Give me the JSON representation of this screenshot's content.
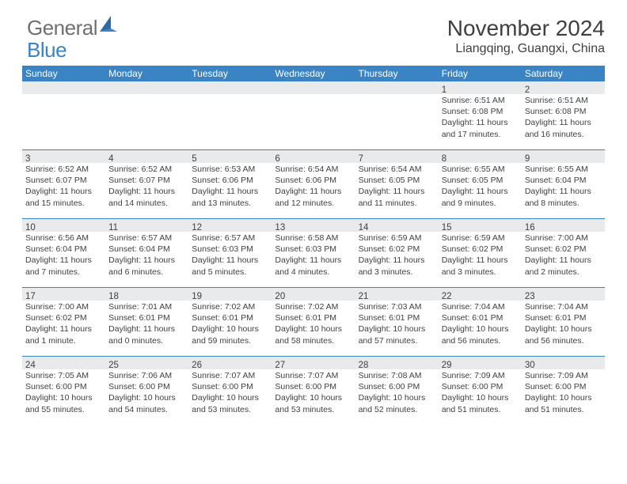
{
  "logo": {
    "text_general": "General",
    "text_blue": "Blue",
    "sail_color": "#2f6aa8"
  },
  "title": {
    "month_year": "November 2024",
    "location": "Liangqing, Guangxi, China"
  },
  "colors": {
    "header_bar": "#3a83c5",
    "day_bar": "#e9eaeb",
    "row_divider": "#3a83c5",
    "text_dark": "#3f3f3f",
    "text_white": "#ffffff",
    "text_gray": "#6f6f6f",
    "text_blue": "#3a83c5",
    "background": "#ffffff"
  },
  "weekdays": [
    "Sunday",
    "Monday",
    "Tuesday",
    "Wednesday",
    "Thursday",
    "Friday",
    "Saturday"
  ],
  "weeks": [
    [
      {
        "num": "",
        "sunrise": "",
        "sunset": "",
        "daylight": ""
      },
      {
        "num": "",
        "sunrise": "",
        "sunset": "",
        "daylight": ""
      },
      {
        "num": "",
        "sunrise": "",
        "sunset": "",
        "daylight": ""
      },
      {
        "num": "",
        "sunrise": "",
        "sunset": "",
        "daylight": ""
      },
      {
        "num": "",
        "sunrise": "",
        "sunset": "",
        "daylight": ""
      },
      {
        "num": "1",
        "sunrise": "Sunrise: 6:51 AM",
        "sunset": "Sunset: 6:08 PM",
        "daylight": "Daylight: 11 hours and 17 minutes."
      },
      {
        "num": "2",
        "sunrise": "Sunrise: 6:51 AM",
        "sunset": "Sunset: 6:08 PM",
        "daylight": "Daylight: 11 hours and 16 minutes."
      }
    ],
    [
      {
        "num": "3",
        "sunrise": "Sunrise: 6:52 AM",
        "sunset": "Sunset: 6:07 PM",
        "daylight": "Daylight: 11 hours and 15 minutes."
      },
      {
        "num": "4",
        "sunrise": "Sunrise: 6:52 AM",
        "sunset": "Sunset: 6:07 PM",
        "daylight": "Daylight: 11 hours and 14 minutes."
      },
      {
        "num": "5",
        "sunrise": "Sunrise: 6:53 AM",
        "sunset": "Sunset: 6:06 PM",
        "daylight": "Daylight: 11 hours and 13 minutes."
      },
      {
        "num": "6",
        "sunrise": "Sunrise: 6:54 AM",
        "sunset": "Sunset: 6:06 PM",
        "daylight": "Daylight: 11 hours and 12 minutes."
      },
      {
        "num": "7",
        "sunrise": "Sunrise: 6:54 AM",
        "sunset": "Sunset: 6:05 PM",
        "daylight": "Daylight: 11 hours and 11 minutes."
      },
      {
        "num": "8",
        "sunrise": "Sunrise: 6:55 AM",
        "sunset": "Sunset: 6:05 PM",
        "daylight": "Daylight: 11 hours and 9 minutes."
      },
      {
        "num": "9",
        "sunrise": "Sunrise: 6:55 AM",
        "sunset": "Sunset: 6:04 PM",
        "daylight": "Daylight: 11 hours and 8 minutes."
      }
    ],
    [
      {
        "num": "10",
        "sunrise": "Sunrise: 6:56 AM",
        "sunset": "Sunset: 6:04 PM",
        "daylight": "Daylight: 11 hours and 7 minutes."
      },
      {
        "num": "11",
        "sunrise": "Sunrise: 6:57 AM",
        "sunset": "Sunset: 6:04 PM",
        "daylight": "Daylight: 11 hours and 6 minutes."
      },
      {
        "num": "12",
        "sunrise": "Sunrise: 6:57 AM",
        "sunset": "Sunset: 6:03 PM",
        "daylight": "Daylight: 11 hours and 5 minutes."
      },
      {
        "num": "13",
        "sunrise": "Sunrise: 6:58 AM",
        "sunset": "Sunset: 6:03 PM",
        "daylight": "Daylight: 11 hours and 4 minutes."
      },
      {
        "num": "14",
        "sunrise": "Sunrise: 6:59 AM",
        "sunset": "Sunset: 6:02 PM",
        "daylight": "Daylight: 11 hours and 3 minutes."
      },
      {
        "num": "15",
        "sunrise": "Sunrise: 6:59 AM",
        "sunset": "Sunset: 6:02 PM",
        "daylight": "Daylight: 11 hours and 3 minutes."
      },
      {
        "num": "16",
        "sunrise": "Sunrise: 7:00 AM",
        "sunset": "Sunset: 6:02 PM",
        "daylight": "Daylight: 11 hours and 2 minutes."
      }
    ],
    [
      {
        "num": "17",
        "sunrise": "Sunrise: 7:00 AM",
        "sunset": "Sunset: 6:02 PM",
        "daylight": "Daylight: 11 hours and 1 minute."
      },
      {
        "num": "18",
        "sunrise": "Sunrise: 7:01 AM",
        "sunset": "Sunset: 6:01 PM",
        "daylight": "Daylight: 11 hours and 0 minutes."
      },
      {
        "num": "19",
        "sunrise": "Sunrise: 7:02 AM",
        "sunset": "Sunset: 6:01 PM",
        "daylight": "Daylight: 10 hours and 59 minutes."
      },
      {
        "num": "20",
        "sunrise": "Sunrise: 7:02 AM",
        "sunset": "Sunset: 6:01 PM",
        "daylight": "Daylight: 10 hours and 58 minutes."
      },
      {
        "num": "21",
        "sunrise": "Sunrise: 7:03 AM",
        "sunset": "Sunset: 6:01 PM",
        "daylight": "Daylight: 10 hours and 57 minutes."
      },
      {
        "num": "22",
        "sunrise": "Sunrise: 7:04 AM",
        "sunset": "Sunset: 6:01 PM",
        "daylight": "Daylight: 10 hours and 56 minutes."
      },
      {
        "num": "23",
        "sunrise": "Sunrise: 7:04 AM",
        "sunset": "Sunset: 6:01 PM",
        "daylight": "Daylight: 10 hours and 56 minutes."
      }
    ],
    [
      {
        "num": "24",
        "sunrise": "Sunrise: 7:05 AM",
        "sunset": "Sunset: 6:00 PM",
        "daylight": "Daylight: 10 hours and 55 minutes."
      },
      {
        "num": "25",
        "sunrise": "Sunrise: 7:06 AM",
        "sunset": "Sunset: 6:00 PM",
        "daylight": "Daylight: 10 hours and 54 minutes."
      },
      {
        "num": "26",
        "sunrise": "Sunrise: 7:07 AM",
        "sunset": "Sunset: 6:00 PM",
        "daylight": "Daylight: 10 hours and 53 minutes."
      },
      {
        "num": "27",
        "sunrise": "Sunrise: 7:07 AM",
        "sunset": "Sunset: 6:00 PM",
        "daylight": "Daylight: 10 hours and 53 minutes."
      },
      {
        "num": "28",
        "sunrise": "Sunrise: 7:08 AM",
        "sunset": "Sunset: 6:00 PM",
        "daylight": "Daylight: 10 hours and 52 minutes."
      },
      {
        "num": "29",
        "sunrise": "Sunrise: 7:09 AM",
        "sunset": "Sunset: 6:00 PM",
        "daylight": "Daylight: 10 hours and 51 minutes."
      },
      {
        "num": "30",
        "sunrise": "Sunrise: 7:09 AM",
        "sunset": "Sunset: 6:00 PM",
        "daylight": "Daylight: 10 hours and 51 minutes."
      }
    ]
  ]
}
